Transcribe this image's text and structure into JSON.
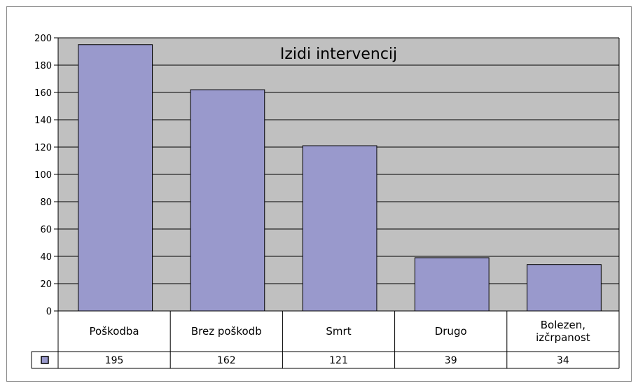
{
  "chart_data": {
    "type": "bar",
    "title": "Izidi intervencij",
    "categories": [
      [
        "Poškodba"
      ],
      [
        "Brez poškodb"
      ],
      [
        "Smrt"
      ],
      [
        "Drugo"
      ],
      [
        "Bolezen,",
        "izčrpanost"
      ]
    ],
    "values": [
      195,
      162,
      121,
      39,
      34
    ],
    "value_labels": [
      "195",
      "162",
      "121",
      "39",
      "34"
    ],
    "y_ticks": [
      "0",
      "20",
      "40",
      "60",
      "80",
      "100",
      "120",
      "140",
      "160",
      "180",
      "200"
    ],
    "ylim": [
      0,
      200
    ],
    "grid": true,
    "legend_position": "data-table",
    "colors": {
      "bar_fill": "#9999cc",
      "bar_stroke": "#000000",
      "plot_background": "#c0c0c0",
      "grid": "#000000"
    }
  }
}
